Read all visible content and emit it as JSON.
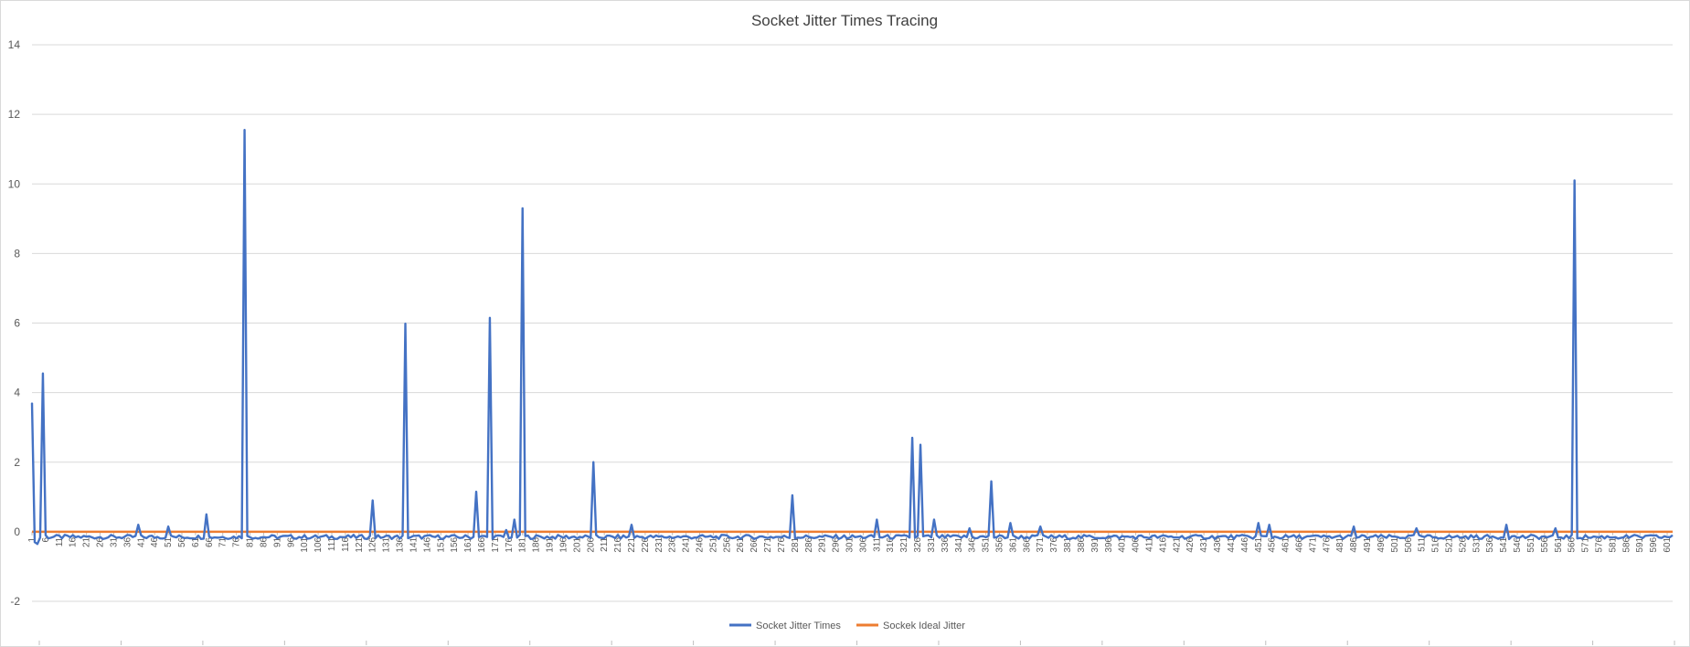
{
  "chart_data": {
    "type": "line",
    "title": "Socket Jitter Times Tracing",
    "xlabel": "",
    "ylabel": "",
    "ylim": [
      -2,
      14
    ],
    "yticks": [
      -2,
      0,
      2,
      4,
      6,
      8,
      10,
      12,
      14
    ],
    "x_range": [
      1,
      603
    ],
    "x_tick_start": 1,
    "x_tick_step": 5,
    "grid": true,
    "legend_position": "bottom-center",
    "baseline_value": -0.15,
    "series": [
      {
        "name": "Socket Jitter Times",
        "color": "#4472C4",
        "points": [
          [
            1,
            3.7
          ],
          [
            2,
            -0.3
          ],
          [
            3,
            -0.35
          ],
          [
            5,
            4.55
          ],
          [
            6,
            -0.1
          ],
          [
            40,
            0.2
          ],
          [
            51,
            0.15
          ],
          [
            65,
            0.5
          ],
          [
            79,
            11.55
          ],
          [
            126,
            0.9
          ],
          [
            138,
            5.98
          ],
          [
            164,
            1.15
          ],
          [
            169,
            6.15
          ],
          [
            175,
            0.05
          ],
          [
            178,
            0.35
          ],
          [
            181,
            9.3
          ],
          [
            207,
            2.0
          ],
          [
            221,
            0.2
          ],
          [
            280,
            1.05
          ],
          [
            311,
            0.35
          ],
          [
            324,
            2.7
          ],
          [
            327,
            2.5
          ],
          [
            332,
            0.35
          ],
          [
            345,
            0.1
          ],
          [
            353,
            1.45
          ],
          [
            360,
            0.25
          ],
          [
            371,
            0.15
          ],
          [
            451,
            0.25
          ],
          [
            455,
            0.2
          ],
          [
            486,
            0.15
          ],
          [
            509,
            0.1
          ],
          [
            542,
            0.2
          ],
          [
            560,
            0.1
          ],
          [
            567,
            10.1
          ]
        ]
      },
      {
        "name": "Sockek Ideal Jitter",
        "color": "#ED7D31",
        "value": 0
      }
    ]
  }
}
